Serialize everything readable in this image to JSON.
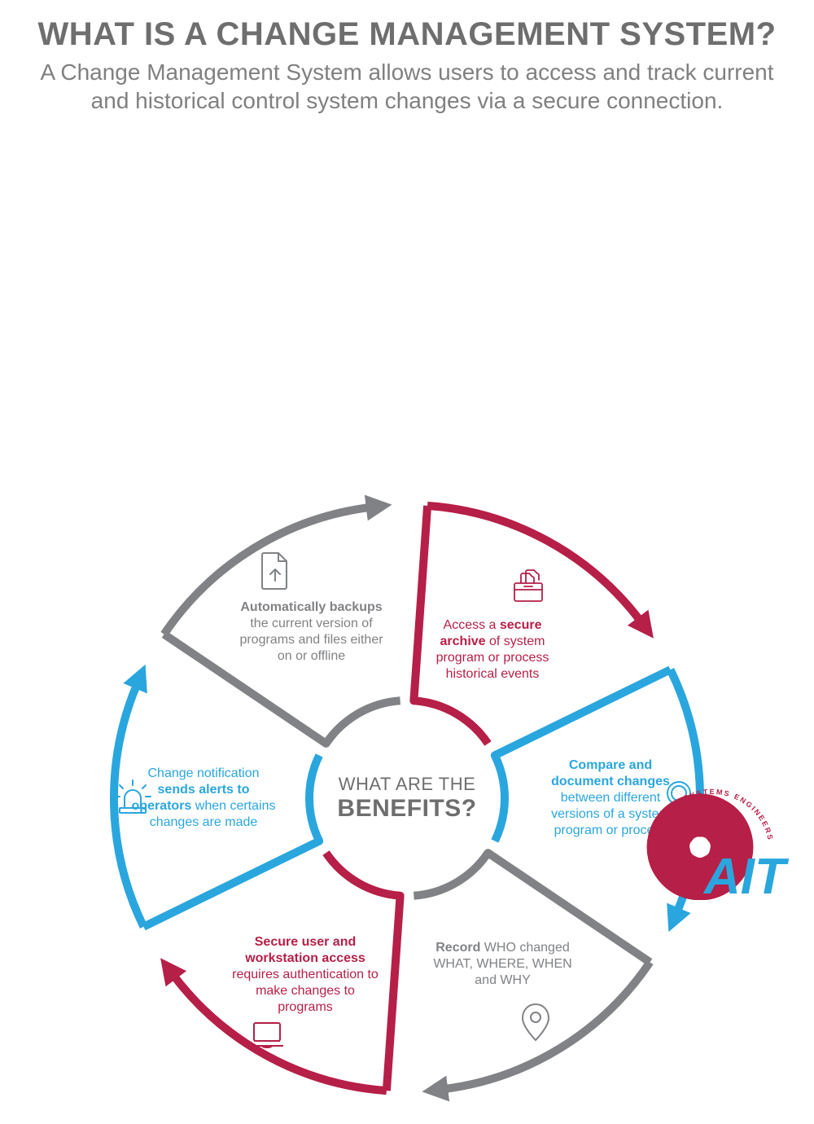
{
  "header": {
    "title": "WHAT IS A CHANGE MANAGEMENT SYSTEM?",
    "subtitle": "A Change Management System allows users to access and track current and historical control system changes via a secure connection."
  },
  "center": {
    "line1": "WHAT ARE THE",
    "line2": "BENEFITS?"
  },
  "colors": {
    "gray": "#808285",
    "red": "#b61f47",
    "blue": "#2aa6de",
    "text_gray": "#6e6e6e",
    "bg": "#ffffff"
  },
  "wheel": {
    "outer_radius": 360,
    "inner_radius": 120,
    "gap_deg": 8,
    "stroke_width": 10,
    "segments": [
      {
        "id": "archive",
        "start_deg": -90,
        "color": "#b61f47",
        "icon": "archive-icon",
        "label_html": "Access a <b>secure archive</b> of system program or process historical events",
        "text_r": 210,
        "icon_r": 300
      },
      {
        "id": "compare",
        "start_deg": -30,
        "color": "#2aa6de",
        "icon": "magnifier-icon",
        "label_html": "<b>Compare and document changes</b> between different versions of a system program or process",
        "text_r": 250,
        "icon_r": 340
      },
      {
        "id": "record",
        "start_deg": 30,
        "color": "#808285",
        "icon": "pin-icon",
        "label_html": "<b>Record</b> WHO changed WHAT, WHERE, WHEN and WHY",
        "text_r": 235,
        "icon_r": 320
      },
      {
        "id": "secure",
        "start_deg": 90,
        "color": "#b61f47",
        "icon": "laptop-icon",
        "label_html": "<b>Secure user and workstation access</b> requires authentication to make changes to programs",
        "text_r": 250,
        "icon_r": 340
      },
      {
        "id": "alerts",
        "start_deg": 150,
        "color": "#2aa6de",
        "icon": "siren-icon",
        "label_html": "Change notification <b>sends alerts to operators</b> when certains changes are made",
        "text_r": 250,
        "icon_r": 335
      },
      {
        "id": "backup",
        "start_deg": 210,
        "color": "#808285",
        "icon": "upload-icon",
        "label_html": "<b>Automatically backups</b> the current version of programs and files either on or offline",
        "text_r": 235,
        "icon_r": 320
      }
    ]
  },
  "logo": {
    "text": "AIT",
    "tagline": "CONTROL SYSTEMS ENGINEERS",
    "gear_color": "#b61f47",
    "text_color": "#2aa6de"
  }
}
